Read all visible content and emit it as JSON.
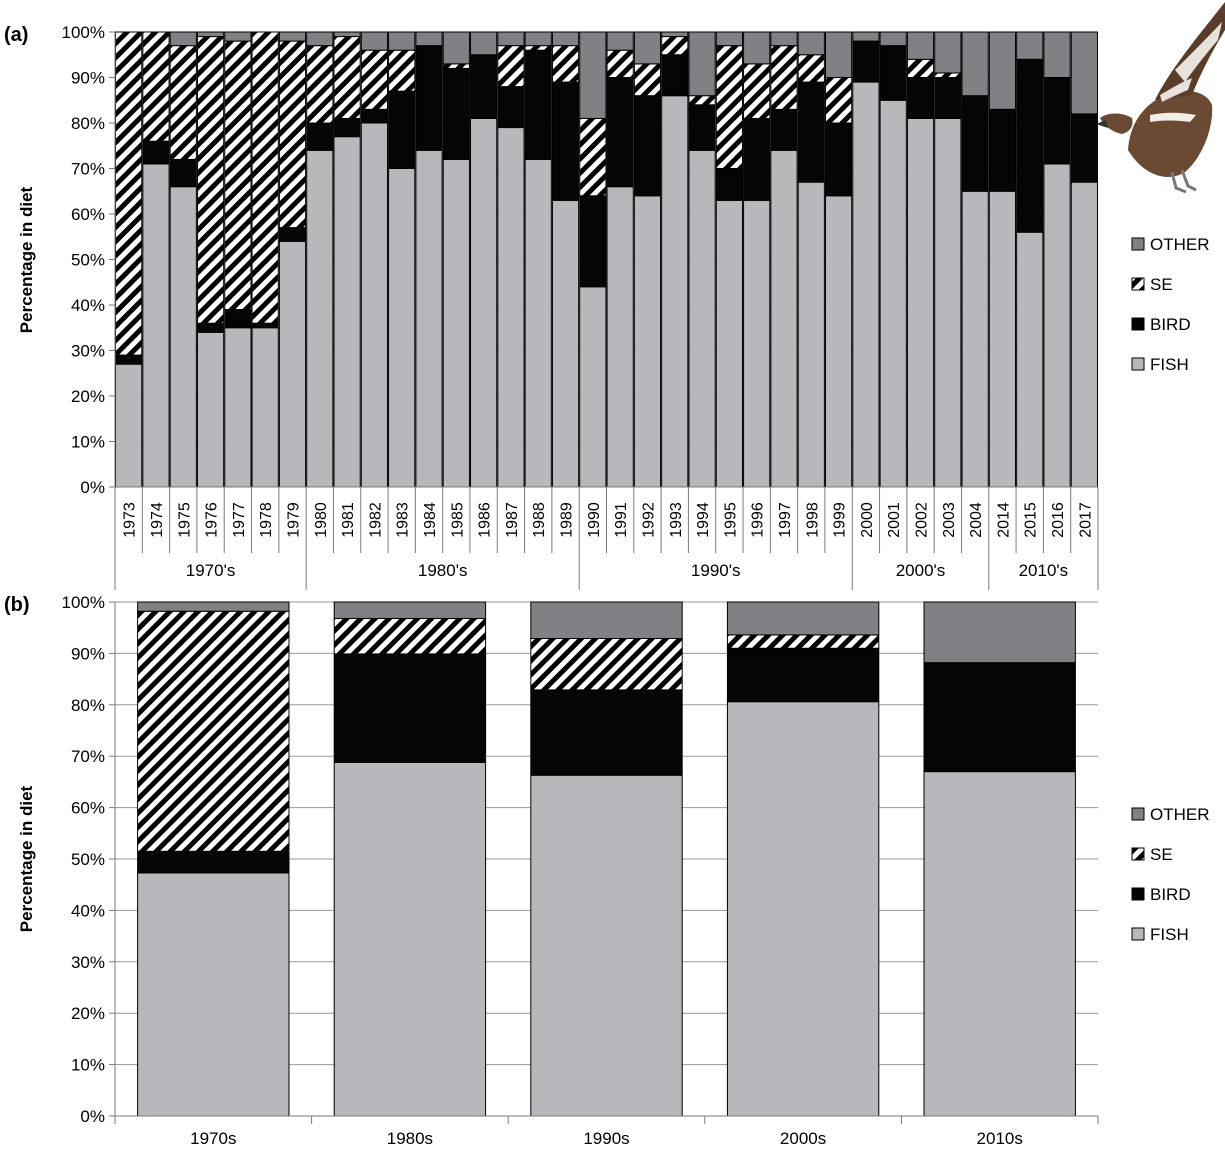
{
  "colors": {
    "FISH": "#b8b8bc",
    "BIRD": "#050505",
    "SE_background": "#ffffff",
    "SE_stripe": "#000000",
    "OTHER": "#808085",
    "grid": "#9a9a9a",
    "axis": "#7a7a7a"
  },
  "chart_data": [
    {
      "panel_label": "a",
      "type": "bar",
      "stacked": true,
      "ylabel": "Percentage in diet",
      "ylim": [
        0,
        100
      ],
      "y_ticks": [
        "0%",
        "10%",
        "20%",
        "30%",
        "40%",
        "50%",
        "60%",
        "70%",
        "80%",
        "90%",
        "100%"
      ],
      "categories": [
        "1973",
        "1974",
        "1975",
        "1976",
        "1977",
        "1978",
        "1979",
        "1980",
        "1981",
        "1982",
        "1983",
        "1984",
        "1985",
        "1986",
        "1987",
        "1988",
        "1989",
        "1990",
        "1991",
        "1992",
        "1993",
        "1994",
        "1995",
        "1996",
        "1997",
        "1998",
        "1999",
        "2000",
        "2001",
        "2002",
        "2003",
        "2004",
        "2014",
        "2015",
        "2016",
        "2017"
      ],
      "decade_groups": [
        {
          "label": "1970's",
          "count": 7
        },
        {
          "label": "1980's",
          "count": 10
        },
        {
          "label": "1990's",
          "count": 10
        },
        {
          "label": "2000's",
          "count": 5
        },
        {
          "label": "2010's",
          "count": 4
        }
      ],
      "series": [
        {
          "name": "FISH",
          "values": [
            27,
            71,
            66,
            34,
            35,
            35,
            54,
            74,
            77,
            80,
            70,
            74,
            72,
            81,
            79,
            72,
            63,
            44,
            66,
            64,
            86,
            74,
            63,
            63,
            74,
            67,
            64,
            89,
            85,
            81,
            81,
            65,
            65,
            56,
            71,
            67
          ]
        },
        {
          "name": "BIRD",
          "values": [
            2,
            5,
            6,
            2,
            4,
            1,
            3,
            6,
            4,
            3,
            17,
            23,
            20,
            14,
            9,
            24,
            26,
            20,
            24,
            22,
            9,
            10,
            7,
            18,
            9,
            22,
            16,
            9,
            12,
            9,
            9,
            21,
            18,
            38,
            19,
            15
          ]
        },
        {
          "name": "SE",
          "values": [
            71,
            24,
            25,
            63,
            59,
            64,
            41,
            17,
            18,
            13,
            9,
            0,
            1,
            0,
            9,
            1,
            8,
            17,
            6,
            7,
            4,
            2,
            27,
            12,
            14,
            6,
            10,
            0,
            0,
            4,
            1,
            0,
            0,
            0,
            0,
            0
          ]
        },
        {
          "name": "OTHER",
          "values": [
            0,
            0,
            3,
            1,
            2,
            0,
            2,
            3,
            1,
            4,
            4,
            3,
            7,
            5,
            3,
            3,
            3,
            19,
            4,
            7,
            1,
            14,
            3,
            7,
            3,
            5,
            10,
            2,
            3,
            6,
            9,
            14,
            17,
            6,
            10,
            18
          ]
        }
      ],
      "legend": [
        "OTHER",
        "SE",
        "BIRD",
        "FISH"
      ],
      "legend_placement": "right",
      "grid": true
    },
    {
      "panel_label": "b",
      "type": "bar",
      "stacked": true,
      "ylabel": "Percentage in diet",
      "ylim": [
        0,
        100
      ],
      "y_ticks": [
        "0%",
        "10%",
        "20%",
        "30%",
        "40%",
        "50%",
        "60%",
        "70%",
        "80%",
        "90%",
        "100%"
      ],
      "categories": [
        "1970s",
        "1980s",
        "1990s",
        "2000s",
        "2010s"
      ],
      "series": [
        {
          "name": "FISH",
          "values": [
            47.3,
            68.8,
            66.3,
            80.6,
            67.0
          ]
        },
        {
          "name": "BIRD",
          "values": [
            4.2,
            21.1,
            16.6,
            10.4,
            21.2
          ]
        },
        {
          "name": "SE",
          "values": [
            46.7,
            6.9,
            10.0,
            2.6,
            0.0
          ]
        },
        {
          "name": "OTHER",
          "values": [
            1.8,
            3.2,
            7.1,
            6.4,
            11.8
          ]
        }
      ],
      "legend": [
        "OTHER",
        "SE",
        "BIRD",
        "FISH"
      ],
      "legend_placement": "right",
      "grid": true
    }
  ]
}
